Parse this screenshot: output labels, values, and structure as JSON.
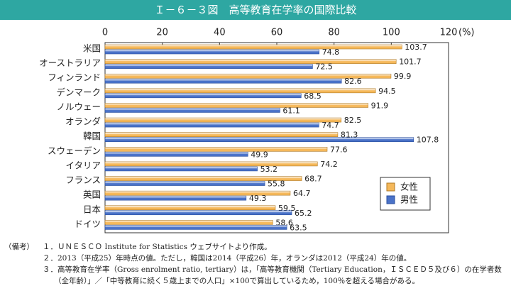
{
  "chart_data": {
    "type": "hbar",
    "title": "Ｉ－６－３図　高等教育在学率の国際比較",
    "x_unit": "(%)",
    "categories": [
      "米国",
      "オーストラリア",
      "フィンランド",
      "デンマーク",
      "ノルウェー",
      "オランダ",
      "韓国",
      "スウェーデン",
      "イタリア",
      "フランス",
      "英国",
      "日本",
      "ドイツ"
    ],
    "series": [
      {
        "name": "女性",
        "color": "#f5b85a",
        "values": [
          103.7,
          101.7,
          99.9,
          94.5,
          91.9,
          82.5,
          81.3,
          77.6,
          74.2,
          68.7,
          64.7,
          59.5,
          58.6
        ]
      },
      {
        "name": "男性",
        "color": "#4a72c8",
        "values": [
          74.8,
          72.5,
          82.6,
          68.5,
          61.1,
          74.7,
          107.8,
          49.9,
          53.2,
          55.8,
          49.3,
          65.2,
          63.5
        ]
      }
    ],
    "xlim": [
      0,
      120
    ],
    "xticks": [
      0,
      20,
      40,
      60,
      80,
      100,
      120
    ],
    "grid": false,
    "legend": "lower right"
  },
  "notes": {
    "label": "（備考）",
    "items": [
      "１．ＵＮＥＳＣＯ Institute for Statistics ウェブサイトより作成。",
      "２．2013（平成25）年時点の値。ただし，韓国は2014（平成26）年，オランダは2012（平成24）年の値。",
      "３．高等教育在学率（Gross enrolment ratio, tertiary）は，「高等教育機関（Tertiary Education，ＩＳＣＥＤ５及び６）の在学者数（全年齢）」／「中等教育に続く５歳上までの人口」×100で算出しているため，100％を超える場合がある。"
    ]
  }
}
